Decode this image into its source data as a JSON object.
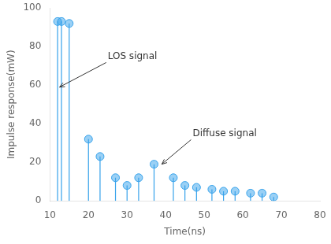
{
  "chart_data": {
    "type": "stem",
    "xlabel": "Time(ns)",
    "ylabel": "Impulse response(mW)",
    "x": [
      12,
      13,
      15,
      20,
      23,
      27,
      30,
      33,
      37,
      42,
      45,
      48,
      52,
      55,
      58,
      62,
      65,
      68
    ],
    "values": [
      93,
      93,
      92,
      32,
      23,
      12,
      8,
      12,
      19,
      12,
      8,
      7,
      6,
      5,
      5,
      4,
      4,
      2
    ],
    "xlim": [
      10,
      80
    ],
    "ylim": [
      0,
      100
    ],
    "xticks": [
      10,
      20,
      30,
      40,
      50,
      60,
      70,
      80
    ],
    "yticks": [
      0,
      20,
      40,
      60,
      80,
      100
    ],
    "grid": false,
    "annotations": [
      {
        "text": "LOS signal",
        "x": 12.5,
        "y": 59,
        "text_x": 25,
        "text_y": 75
      },
      {
        "text": "Diffuse signal",
        "x": 39,
        "y": 19,
        "text_x": 47,
        "text_y": 35
      }
    ]
  }
}
